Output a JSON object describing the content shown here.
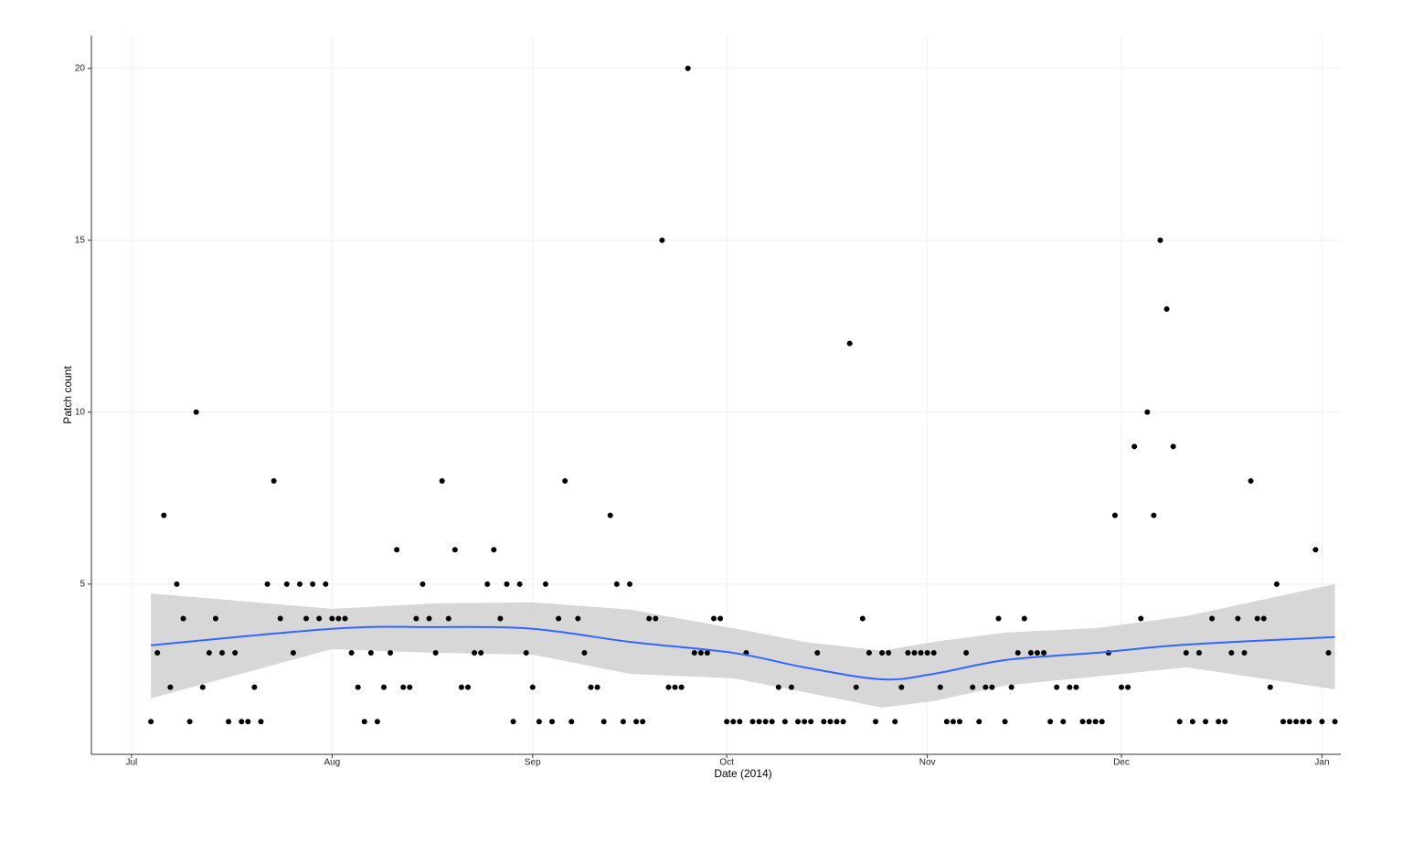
{
  "chart_data": {
    "type": "scatter",
    "x_label": "Date (2014)",
    "y_label": "Patch count",
    "color": "#000000",
    "grid": true,
    "xlim": [
      -6.2,
      186.9
    ],
    "xticks": [
      {
        "value": 0,
        "label": "Jul"
      },
      {
        "value": 31,
        "label": "Aug"
      },
      {
        "value": 62,
        "label": "Sep"
      },
      {
        "value": 92,
        "label": "Oct"
      },
      {
        "value": 123,
        "label": "Nov"
      },
      {
        "value": 153,
        "label": "Dec"
      },
      {
        "value": 184,
        "label": "Jan"
      }
    ],
    "ylim": [
      0.05,
      20.95
    ],
    "yticks": [
      5,
      10,
      15,
      20
    ],
    "x": [
      3,
      4,
      5,
      6,
      7,
      8,
      9,
      10,
      11,
      12,
      13,
      14,
      15,
      16,
      17,
      18,
      19,
      20,
      21,
      22,
      23,
      24,
      25,
      26,
      27,
      28,
      29,
      30,
      31,
      32,
      33,
      34,
      35,
      36,
      37,
      38,
      39,
      40,
      41,
      42,
      43,
      44,
      45,
      46,
      47,
      48,
      49,
      50,
      51,
      52,
      53,
      54,
      55,
      56,
      57,
      58,
      59,
      60,
      61,
      62,
      63,
      64,
      65,
      66,
      67,
      68,
      69,
      70,
      71,
      72,
      73,
      74,
      75,
      76,
      77,
      78,
      79,
      80,
      81,
      82,
      83,
      84,
      85,
      86,
      87,
      88,
      89,
      90,
      91,
      92,
      93,
      94,
      95,
      96,
      97,
      98,
      99,
      100,
      101,
      102,
      103,
      104,
      105,
      106,
      107,
      108,
      109,
      110,
      111,
      112,
      113,
      114,
      115,
      116,
      117,
      118,
      119,
      120,
      121,
      122,
      123,
      124,
      125,
      126,
      127,
      128,
      129,
      130,
      131,
      132,
      133,
      134,
      135,
      136,
      137,
      138,
      139,
      140,
      141,
      142,
      143,
      144,
      145,
      146,
      147,
      148,
      149,
      150,
      151,
      152,
      153,
      154,
      155,
      156,
      157,
      158,
      159,
      160,
      161,
      162,
      163,
      164,
      165,
      166,
      167,
      168,
      169,
      170,
      171,
      172,
      173,
      174,
      175,
      176,
      177,
      178,
      179,
      180,
      181,
      182,
      183,
      184,
      185,
      186
    ],
    "values": [
      1,
      3,
      7,
      2,
      5,
      4,
      1,
      10,
      2,
      3,
      4,
      3,
      1,
      3,
      1,
      1,
      2,
      1,
      5,
      8,
      4,
      5,
      3,
      5,
      4,
      5,
      4,
      5,
      4,
      4,
      4,
      3,
      2,
      1,
      3,
      1,
      2,
      3,
      6,
      2,
      2,
      4,
      5,
      4,
      3,
      8,
      4,
      6,
      2,
      2,
      3,
      3,
      5,
      6,
      4,
      5,
      1,
      5,
      3,
      2,
      1,
      5,
      1,
      4,
      8,
      1,
      4,
      3,
      2,
      2,
      1,
      7,
      5,
      1,
      5,
      1,
      1,
      4,
      4,
      15,
      2,
      2,
      2,
      20,
      3,
      3,
      3,
      4,
      4,
      1,
      1,
      1,
      3,
      1,
      1,
      1,
      1,
      2,
      1,
      2,
      1,
      1,
      1,
      3,
      1,
      1,
      1,
      1,
      12,
      2,
      4,
      3,
      1,
      3,
      3,
      1,
      2,
      3,
      3,
      3,
      3,
      3,
      2,
      1,
      1,
      1,
      3,
      2,
      1,
      2,
      2,
      4,
      1,
      2,
      3,
      4,
      3,
      3,
      3,
      1,
      2,
      1,
      2,
      2,
      1,
      1,
      1,
      1,
      3,
      7,
      2,
      2,
      9,
      4,
      10,
      7,
      15,
      13,
      9,
      1,
      3,
      1,
      3,
      1,
      4,
      1,
      1,
      3,
      4,
      3,
      8,
      4,
      4,
      2,
      5,
      1,
      1,
      1,
      1,
      1,
      6,
      1,
      3,
      1
    ],
    "smooth": {
      "color": "#3366ff",
      "band_color": "#d3d3d3",
      "x": [
        3,
        31,
        47,
        62,
        77,
        93,
        104,
        116,
        124,
        135,
        149,
        163,
        186
      ],
      "values": [
        3.22,
        3.7,
        3.75,
        3.7,
        3.32,
        3.0,
        2.58,
        2.23,
        2.39,
        2.79,
        3.0,
        3.24,
        3.46
      ],
      "upper": [
        4.73,
        4.28,
        4.44,
        4.47,
        4.26,
        3.72,
        3.32,
        3.06,
        3.32,
        3.59,
        3.72,
        4.07,
        5.0
      ],
      "lower": [
        1.68,
        3.11,
        3.0,
        2.95,
        2.39,
        2.26,
        1.86,
        1.41,
        1.6,
        2.05,
        2.31,
        2.58,
        1.94
      ]
    }
  }
}
